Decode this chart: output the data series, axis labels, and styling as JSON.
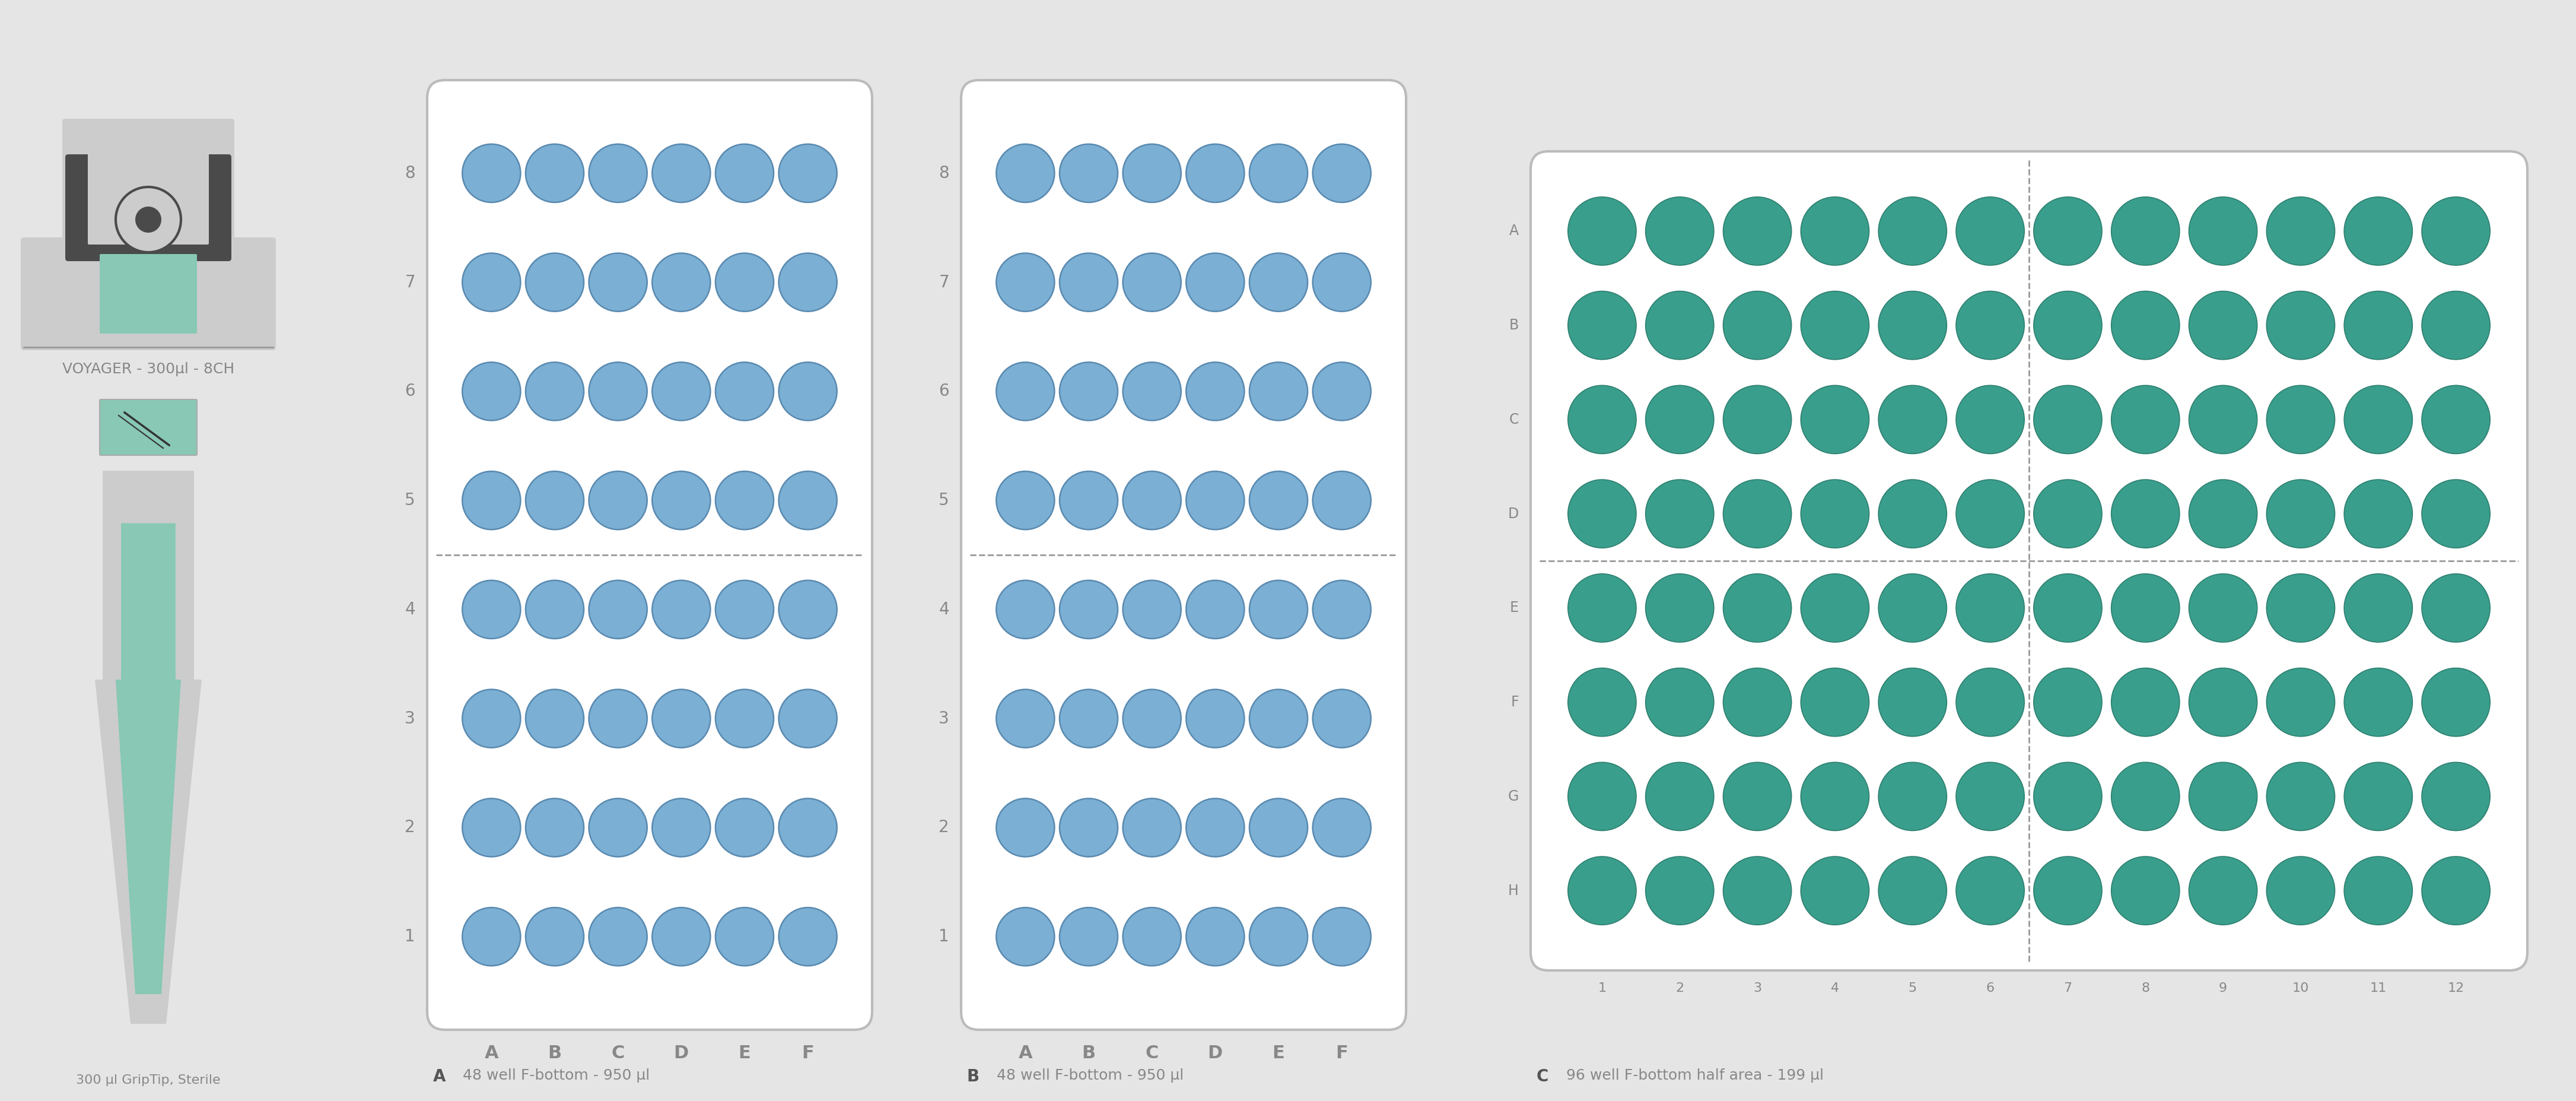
{
  "bg_color": "#e5e5e5",
  "plate_bg": "#ffffff",
  "plate_border": "#bbbbbb",
  "well_color_48": "#7bafd4",
  "well_border_48": "#5a8ab0",
  "well_color_96": "#3a9e8c",
  "well_border_96": "#2d8070",
  "dashed_line_color": "#999999",
  "label_color": "#888888",
  "title_color": "#555555",
  "pipette_gray_dark": "#4a4a4a",
  "pipette_gray_mid": "#888888",
  "pipette_gray_light": "#cccccc",
  "pipette_teal": "#88c8b4",
  "caption_A": "48 well F-bottom - 950 µl",
  "caption_B": "48 well F-bottom - 950 µl",
  "caption_C": "96 well F-bottom half area - 199 µl",
  "pipette_label": "VOYAGER - 300µl - 8CH",
  "tip_label": "300 µl GripTip, Sterile",
  "rows_48": [
    "8",
    "7",
    "6",
    "5",
    "4",
    "3",
    "2",
    "1"
  ],
  "cols_48": [
    "A",
    "B",
    "C",
    "D",
    "E",
    "F"
  ],
  "rows_96": [
    "A",
    "B",
    "C",
    "D",
    "E",
    "F",
    "G",
    "H"
  ],
  "cols_96": [
    "1",
    "2",
    "3",
    "4",
    "5",
    "6",
    "7",
    "8",
    "9",
    "10",
    "11",
    "12"
  ]
}
